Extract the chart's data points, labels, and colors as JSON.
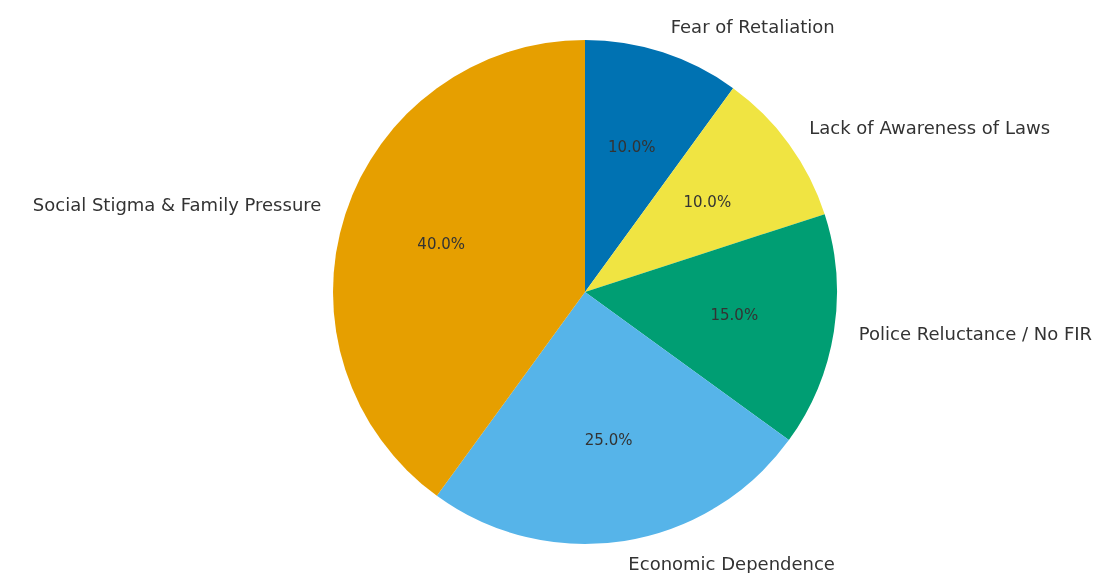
{
  "chart_data": {
    "type": "pie",
    "categories": [
      "Fear of Retaliation",
      "Lack of Awareness of Laws",
      "Police Reluctance / No FIR",
      "Economic Dependence",
      "Social Stigma & Family Pressure"
    ],
    "values": [
      10,
      10,
      15,
      25,
      40
    ],
    "colors": [
      "#0072b2",
      "#f0e442",
      "#009e73",
      "#56b4e9",
      "#e69f00"
    ],
    "value_labels": [
      "10.0%",
      "10.0%",
      "15.0%",
      "25.0%",
      "40.0%"
    ],
    "legend": false
  }
}
